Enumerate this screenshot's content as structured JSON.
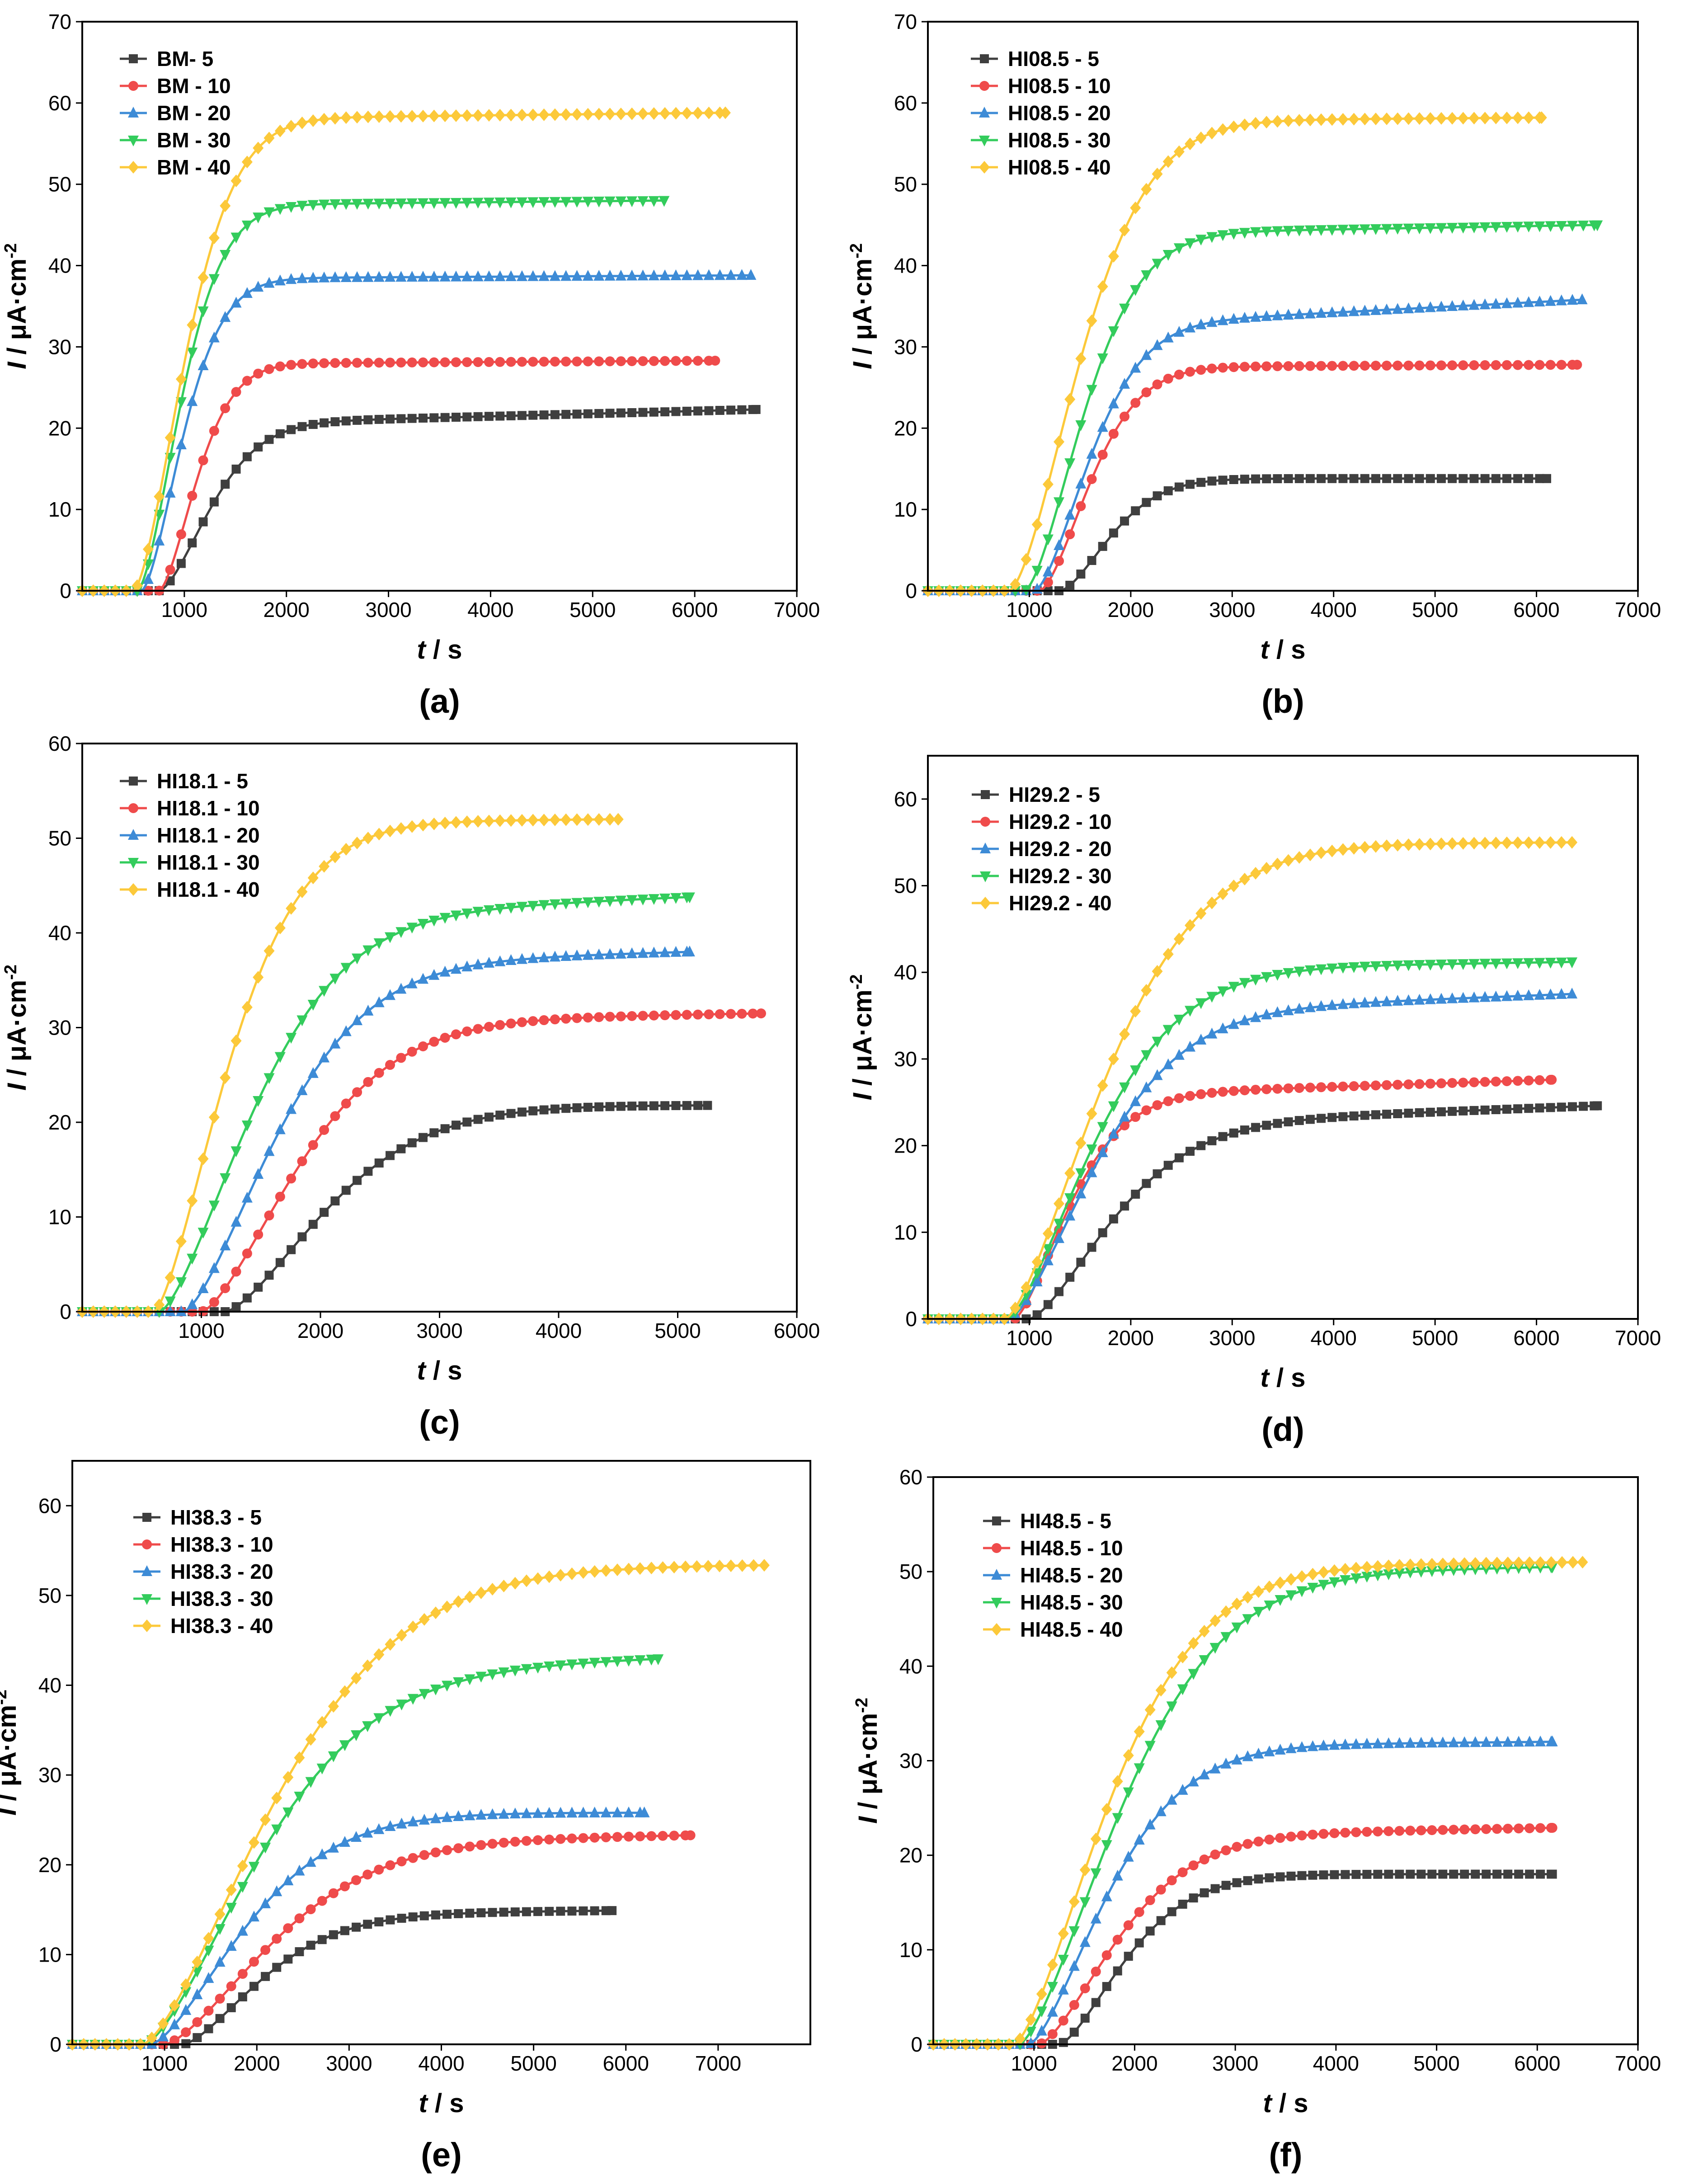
{
  "figure": {
    "colors": {
      "5": "#3f3f3f",
      "10": "#ef4b4b",
      "20": "#3d8bd6",
      "30": "#33cc5c",
      "40": "#fcc93a"
    },
    "markers": {
      "5": "square",
      "10": "circle",
      "20": "triangle-up",
      "30": "triangle-down",
      "40": "diamond"
    }
  },
  "chart_data": [
    {
      "type": "line",
      "panel_label": "(a)",
      "xlabel_italic": "t",
      "xlabel_unit": " / s",
      "ylabel_italic": "I",
      "ylabel_unit": " / μA·cm",
      "ylabel_sup": "-2",
      "xlim": [
        0,
        7000
      ],
      "ylim": [
        0,
        70
      ],
      "xticks": [
        1000,
        2000,
        3000,
        4000,
        5000,
        6000,
        7000
      ],
      "yticks": [
        0,
        10,
        20,
        30,
        40,
        50,
        60,
        70
      ],
      "series": [
        {
          "key": "5",
          "name": "BM- 5",
          "onset": 750,
          "plateau": 22.3,
          "tau": 650,
          "power": 1.6,
          "tend": 6600,
          "drift": 1.9
        },
        {
          "key": "10",
          "name": "BM - 10",
          "onset": 750,
          "plateau": 28.3,
          "tau": 480,
          "power": 1.6,
          "tend": 6200,
          "drift": 0.4
        },
        {
          "key": "20",
          "name": "BM - 20",
          "onset": 580,
          "plateau": 38.8,
          "tau": 520,
          "power": 1.6,
          "tend": 6550,
          "drift": 0.4
        },
        {
          "key": "30",
          "name": "BM - 30",
          "onset": 540,
          "plateau": 48.0,
          "tau": 550,
          "power": 1.6,
          "tend": 5700,
          "drift": 0.6
        },
        {
          "key": "40",
          "name": "BM - 40",
          "onset": 500,
          "plateau": 58.8,
          "tau": 650,
          "power": 1.6,
          "tend": 6300,
          "drift": 0.8
        }
      ]
    },
    {
      "type": "line",
      "panel_label": "(b)",
      "xlabel_italic": "t",
      "xlabel_unit": " / s",
      "ylabel_italic": "I",
      "ylabel_unit": " / μA·cm",
      "ylabel_sup": "-2",
      "xlim": [
        0,
        7000
      ],
      "ylim": [
        0,
        70
      ],
      "xticks": [
        1000,
        2000,
        3000,
        4000,
        5000,
        6000,
        7000
      ],
      "yticks": [
        0,
        10,
        20,
        30,
        40,
        50,
        60,
        70
      ],
      "series": [
        {
          "key": "5",
          "name": "HI08.5 - 5",
          "onset": 1300,
          "plateau": 13.8,
          "tau": 650,
          "power": 1.6,
          "tend": 6100,
          "drift": 0
        },
        {
          "key": "10",
          "name": "HI08.5 - 10",
          "onset": 1100,
          "plateau": 27.8,
          "tau": 650,
          "power": 1.6,
          "tend": 6400,
          "drift": 0.3
        },
        {
          "key": "20",
          "name": "HI08.5 - 20",
          "onset": 1050,
          "plateau": 35.8,
          "tau": 700,
          "power": 1.6,
          "tend": 6450,
          "drift": 3.5
        },
        {
          "key": "30",
          "name": "HI08.5 - 30",
          "onset": 950,
          "plateau": 45.0,
          "tau": 750,
          "power": 1.6,
          "tend": 6600,
          "drift": 1.2
        },
        {
          "key": "40",
          "name": "HI08.5 - 40",
          "onset": 800,
          "plateau": 58.2,
          "tau": 900,
          "power": 1.6,
          "tend": 6050,
          "drift": 0.5
        }
      ]
    },
    {
      "type": "line",
      "panel_label": "(c)",
      "xlabel_italic": "t",
      "xlabel_unit": " / s",
      "ylabel_italic": "I",
      "ylabel_unit": " / μA·cm",
      "ylabel_sup": "-2",
      "xlim": [
        0,
        6000
      ],
      "ylim": [
        0,
        60
      ],
      "xticks": [
        1000,
        2000,
        3000,
        4000,
        5000,
        6000
      ],
      "yticks": [
        0,
        10,
        20,
        30,
        40,
        50,
        60
      ],
      "series": [
        {
          "key": "5",
          "name": "HI18.1 - 5",
          "onset": 1200,
          "plateau": 21.8,
          "tau": 1100,
          "power": 1.5,
          "tend": 5250,
          "drift": 0
        },
        {
          "key": "10",
          "name": "HI18.1 - 10",
          "onset": 1000,
          "plateau": 31.5,
          "tau": 1050,
          "power": 1.5,
          "tend": 5700,
          "drift": 1.0
        },
        {
          "key": "20",
          "name": "HI18.1 - 20",
          "onset": 850,
          "plateau": 38.0,
          "tau": 1000,
          "power": 1.5,
          "tend": 5100,
          "drift": 1.5
        },
        {
          "key": "30",
          "name": "HI18.1 - 30",
          "onset": 650,
          "plateau": 43.8,
          "tau": 1000,
          "power": 1.5,
          "tend": 5100,
          "drift": 2.5
        },
        {
          "key": "40",
          "name": "HI18.1 - 40",
          "onset": 600,
          "plateau": 52.0,
          "tau": 800,
          "power": 1.5,
          "tend": 4500,
          "drift": 0.4
        }
      ]
    },
    {
      "type": "line",
      "panel_label": "(d)",
      "xlabel_italic": "t",
      "xlabel_unit": " / s",
      "ylabel_italic": "I",
      "ylabel_unit": " / μA·cm",
      "ylabel_sup": "-2",
      "xlim": [
        0,
        7000
      ],
      "ylim": [
        0,
        65
      ],
      "xticks": [
        1000,
        2000,
        3000,
        4000,
        5000,
        6000,
        7000
      ],
      "yticks": [
        0,
        10,
        20,
        30,
        40,
        50,
        60
      ],
      "series": [
        {
          "key": "5",
          "name": "HI29.2 - 5",
          "onset": 1000,
          "plateau": 24.6,
          "tau": 1050,
          "power": 1.5,
          "tend": 6600,
          "drift": 2.5
        },
        {
          "key": "10",
          "name": "HI29.2 - 10",
          "onset": 850,
          "plateau": 27.6,
          "tau": 700,
          "power": 1.5,
          "tend": 6150,
          "drift": 2.0
        },
        {
          "key": "20",
          "name": "HI29.2 - 20",
          "onset": 800,
          "plateau": 37.5,
          "tau": 1100,
          "power": 1.5,
          "tend": 6350,
          "drift": 2.5
        },
        {
          "key": "30",
          "name": "HI29.2 - 30",
          "onset": 780,
          "plateau": 41.2,
          "tau": 1100,
          "power": 1.5,
          "tend": 6350,
          "drift": 1.0
        },
        {
          "key": "40",
          "name": "HI29.2 - 40",
          "onset": 760,
          "plateau": 55.0,
          "tau": 1250,
          "power": 1.5,
          "tend": 6350,
          "drift": 0.3
        }
      ]
    },
    {
      "type": "line",
      "panel_label": "(e)",
      "xlabel_italic": "t",
      "xlabel_unit": " / s",
      "ylabel_italic": "I",
      "ylabel_unit": " / μA·cm",
      "ylabel_sup": "-2",
      "xlim": [
        0,
        8000
      ],
      "ylim": [
        0,
        65
      ],
      "xticks": [
        1000,
        2000,
        3000,
        4000,
        5000,
        6000,
        7000
      ],
      "yticks": [
        0,
        10,
        20,
        30,
        40,
        50,
        60
      ],
      "series": [
        {
          "key": "5",
          "name": "HI38.3 - 5",
          "onset": 1200,
          "plateau": 14.9,
          "tau": 1100,
          "power": 1.5,
          "tend": 5850,
          "drift": 0.5
        },
        {
          "key": "10",
          "name": "HI38.3 - 10",
          "onset": 1000,
          "plateau": 23.3,
          "tau": 1500,
          "power": 1.5,
          "tend": 6700,
          "drift": 1.0
        },
        {
          "key": "20",
          "name": "HI38.3 - 20",
          "onset": 850,
          "plateau": 25.8,
          "tau": 1300,
          "power": 1.5,
          "tend": 6200,
          "drift": 0
        },
        {
          "key": "30",
          "name": "HI38.3 - 30",
          "onset": 780,
          "plateau": 43.0,
          "tau": 1600,
          "power": 1.5,
          "tend": 6350,
          "drift": 2.0
        },
        {
          "key": "40",
          "name": "HI38.3 - 40",
          "onset": 760,
          "plateau": 53.4,
          "tau": 1800,
          "power": 1.5,
          "tend": 7500,
          "drift": 0.5
        }
      ]
    },
    {
      "type": "line",
      "panel_label": "(f)",
      "xlabel_italic": "t",
      "xlabel_unit": " / s",
      "ylabel_italic": "I",
      "ylabel_unit": " / μA·cm",
      "ylabel_sup": "-2",
      "xlim": [
        0,
        7000
      ],
      "ylim": [
        0,
        60
      ],
      "xticks": [
        1000,
        2000,
        3000,
        4000,
        5000,
        6000,
        7000
      ],
      "yticks": [
        0,
        10,
        20,
        30,
        40,
        50,
        60
      ],
      "series": [
        {
          "key": "5",
          "name": "HI48.5 - 5",
          "onset": 1250,
          "plateau": 18.0,
          "tau": 850,
          "power": 1.5,
          "tend": 6150,
          "drift": 0
        },
        {
          "key": "10",
          "name": "HI48.5 - 10",
          "onset": 1050,
          "plateau": 22.9,
          "tau": 1000,
          "power": 1.5,
          "tend": 6150,
          "drift": 1.0
        },
        {
          "key": "20",
          "name": "HI48.5 - 20",
          "onset": 950,
          "plateau": 32.0,
          "tau": 1000,
          "power": 1.5,
          "tend": 6150,
          "drift": 0.5
        },
        {
          "key": "30",
          "name": "HI48.5 - 30",
          "onset": 850,
          "plateau": 50.5,
          "tau": 1300,
          "power": 1.5,
          "tend": 6150,
          "drift": 1.0
        },
        {
          "key": "40",
          "name": "HI48.5 - 40",
          "onset": 800,
          "plateau": 51.0,
          "tau": 1200,
          "power": 1.5,
          "tend": 6450,
          "drift": 0.5
        }
      ]
    }
  ]
}
